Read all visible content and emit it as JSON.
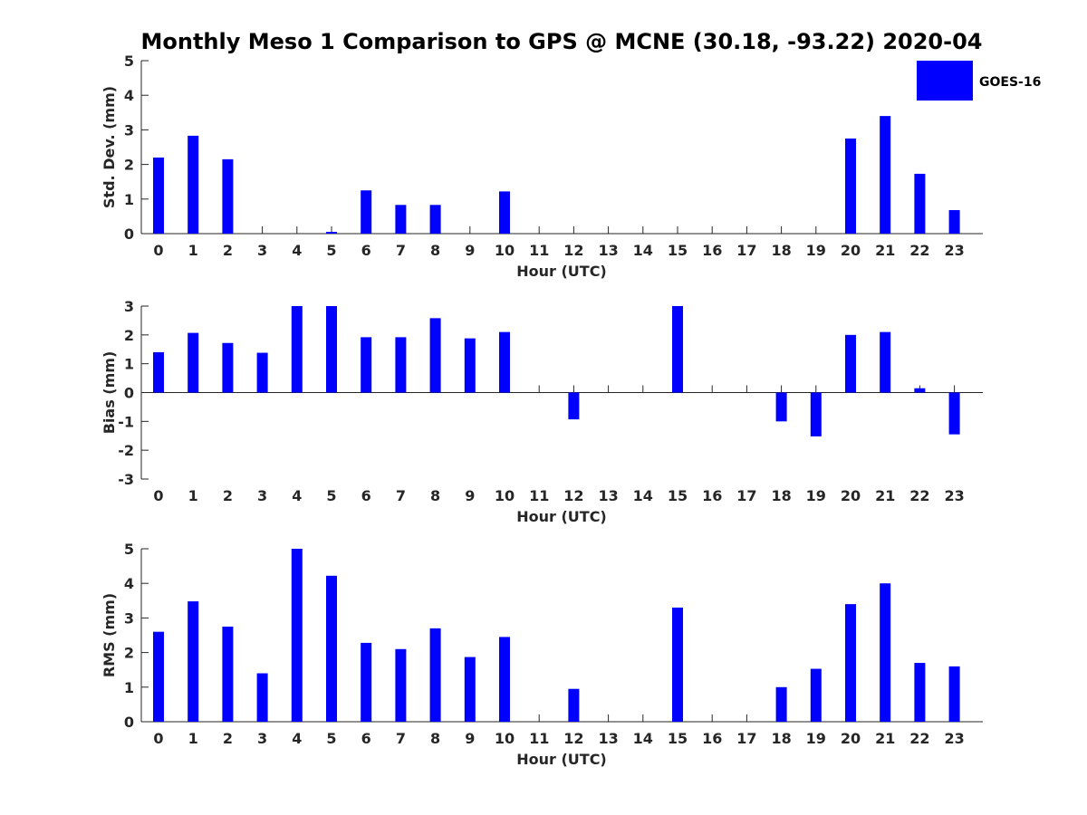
{
  "chart_data": {
    "type": "bar",
    "title": "Monthly Meso 1 Comparison to GPS @ MCNE (30.18, -93.22) 2020-04",
    "legend": {
      "label": "GOES-16",
      "placement": "top-right"
    },
    "series_color": "#0000ff",
    "categories": [
      "0",
      "1",
      "2",
      "3",
      "4",
      "5",
      "6",
      "7",
      "8",
      "9",
      "10",
      "11",
      "12",
      "13",
      "14",
      "15",
      "16",
      "17",
      "18",
      "19",
      "20",
      "21",
      "22",
      "23"
    ],
    "panels": [
      {
        "name": "std-dev",
        "ylabel": "Std. Dev. (mm)",
        "xlabel": "Hour (UTC)",
        "ylim": [
          0,
          5
        ],
        "yticks": [
          0,
          1,
          2,
          3,
          4,
          5
        ],
        "values": [
          2.2,
          2.83,
          2.15,
          null,
          null,
          0.05,
          1.25,
          0.83,
          0.83,
          null,
          1.22,
          null,
          null,
          null,
          null,
          null,
          null,
          null,
          null,
          null,
          2.75,
          3.4,
          1.73,
          0.68
        ]
      },
      {
        "name": "bias",
        "ylabel": "Bias (mm)",
        "xlabel": "Hour (UTC)",
        "ylim": [
          -3,
          3
        ],
        "yticks": [
          -3,
          -2,
          -1,
          0,
          1,
          2,
          3
        ],
        "values": [
          1.4,
          2.07,
          1.72,
          1.38,
          3.0,
          3.0,
          1.92,
          1.92,
          2.58,
          1.88,
          2.1,
          null,
          -0.93,
          null,
          null,
          3.0,
          null,
          null,
          -1.0,
          -1.52,
          2.0,
          2.1,
          0.15,
          -1.45
        ]
      },
      {
        "name": "rms",
        "ylabel": "RMS (mm)",
        "xlabel": "Hour (UTC)",
        "ylim": [
          0,
          5
        ],
        "yticks": [
          0,
          1,
          2,
          3,
          4,
          5
        ],
        "values": [
          2.6,
          3.48,
          2.75,
          1.4,
          5.0,
          4.22,
          2.28,
          2.1,
          2.7,
          1.87,
          2.45,
          null,
          0.95,
          null,
          null,
          3.3,
          null,
          null,
          1.0,
          1.53,
          3.4,
          4.0,
          1.7,
          1.6
        ]
      }
    ]
  }
}
